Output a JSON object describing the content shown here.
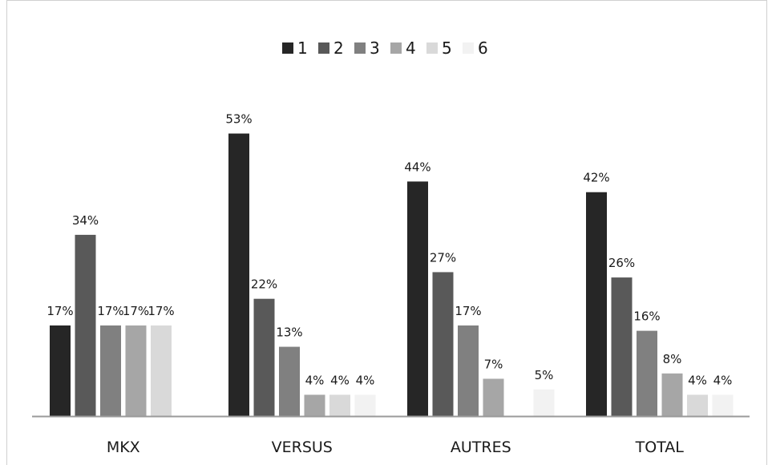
{
  "chart_data": {
    "type": "bar",
    "title": "",
    "xlabel": "",
    "ylabel": "",
    "categories": [
      "MKX",
      "VERSUS",
      "AUTRES",
      "TOTAL"
    ],
    "ylim": [
      0,
      0.6
    ],
    "grid": false,
    "legend_position": "top-center",
    "series": [
      {
        "name": "1",
        "color": "#262626",
        "values": [
          0.17,
          0.53,
          0.44,
          0.42
        ],
        "labels": [
          "17%",
          "53%",
          "44%",
          "42%"
        ]
      },
      {
        "name": "2",
        "color": "#595959",
        "values": [
          0.34,
          0.22,
          0.27,
          0.26
        ],
        "labels": [
          "34%",
          "22%",
          "27%",
          "26%"
        ]
      },
      {
        "name": "3",
        "color": "#808080",
        "values": [
          0.17,
          0.13,
          0.17,
          0.16
        ],
        "labels": [
          "17%",
          "13%",
          "17%",
          "16%"
        ]
      },
      {
        "name": "4",
        "color": "#a6a6a6",
        "values": [
          0.17,
          0.04,
          0.07,
          0.08
        ],
        "labels": [
          "17%",
          "4%",
          "7%",
          "8%"
        ]
      },
      {
        "name": "5",
        "color": "#d9d9d9",
        "values": [
          0.17,
          0.04,
          null,
          0.04
        ],
        "labels": [
          "17%",
          "4%",
          "",
          "4%"
        ]
      },
      {
        "name": "6",
        "color": "#f2f2f2",
        "values": [
          null,
          0.04,
          0.05,
          0.04
        ],
        "labels": [
          "",
          "4%",
          "5%",
          "4%"
        ]
      }
    ]
  }
}
